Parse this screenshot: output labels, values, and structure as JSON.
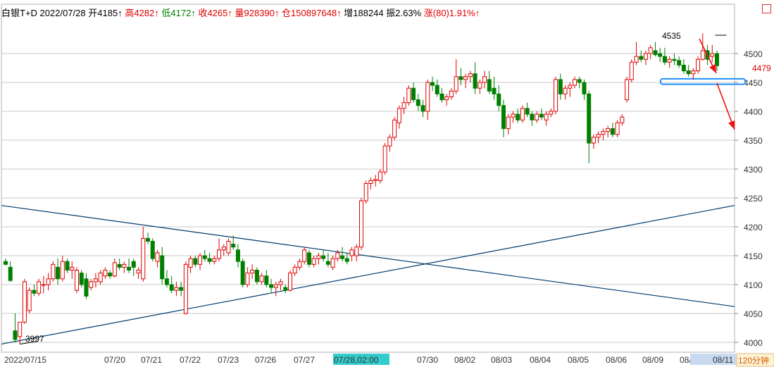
{
  "header": {
    "symbol": "白银T+D",
    "date": "2022/07/28",
    "open_label": "开",
    "open_value": "4185↑",
    "high_label": "高",
    "high_value": "4282↑",
    "low_label": "低",
    "low_value": "4172↑",
    "close_label": "收",
    "close_value": "4265↑",
    "volume_label": "量",
    "volume_value": "928390↑",
    "oi_label": "仓",
    "oi_value": "150897648↑",
    "oi_change": "增188244",
    "amplitude": "振2.63%",
    "change": "涨(80)1.91%↑"
  },
  "colors": {
    "up": "#e00000",
    "down": "#008000",
    "grid": "#c8c8c8",
    "trendline": "#003a6c",
    "highlight_box": "#1e90ff",
    "arrow": "#ee1111",
    "current_price": "#e00000"
  },
  "chart_data": {
    "type": "candlestick",
    "period_label": "120分钟",
    "x_labels": [
      "2022/07/15",
      "07/20",
      "07/21",
      "07/22",
      "07/23",
      "07/26",
      "07/27",
      "07/28,02:00",
      "07/30",
      "08/02",
      "08/03",
      "08/04",
      "08/05",
      "08/06",
      "08/09",
      "08/10",
      "08/11"
    ],
    "highlighted_x_label": "07/28,02:00",
    "y_ticks": [
      4000,
      4050,
      4100,
      4150,
      4200,
      4250,
      4300,
      4350,
      4400,
      4450,
      4500
    ],
    "ylim": [
      3990,
      4545
    ],
    "annotations": [
      {
        "text": "3997",
        "value": 3997,
        "type": "low"
      },
      {
        "text": "4535",
        "value": 4535,
        "type": "high"
      }
    ],
    "current_price": {
      "text": "4479",
      "value": 4479
    },
    "trendlines": [
      {
        "name": "descending",
        "from": [
          0,
          4237
        ],
        "to": [
          162,
          4062
        ]
      },
      {
        "name": "ascending",
        "from": [
          0,
          3997
        ],
        "to": [
          162,
          4237
        ]
      }
    ],
    "support_zone": {
      "low": 4448,
      "high": 4455
    },
    "candles": [
      [
        4140,
        4145,
        4133,
        4135
      ],
      [
        4130,
        4140,
        4105,
        4107
      ],
      [
        4020,
        4050,
        4000,
        4005
      ],
      [
        4010,
        4035,
        3997,
        4035
      ],
      [
        4035,
        4110,
        4032,
        4105
      ],
      [
        4055,
        4095,
        4050,
        4090
      ],
      [
        4090,
        4100,
        4080,
        4085
      ],
      [
        4085,
        4110,
        4080,
        4105
      ],
      [
        4100,
        4115,
        4085,
        4100
      ],
      [
        4100,
        4120,
        4090,
        4110
      ],
      [
        4110,
        4140,
        4105,
        4135
      ],
      [
        4130,
        4145,
        4100,
        4110
      ],
      [
        4110,
        4150,
        4105,
        4140
      ],
      [
        4140,
        4145,
        4120,
        4125
      ],
      [
        4125,
        4140,
        4110,
        4130
      ],
      [
        4090,
        4130,
        4085,
        4125
      ],
      [
        4120,
        4125,
        4095,
        4100
      ],
      [
        4110,
        4120,
        4075,
        4080
      ],
      [
        4095,
        4110,
        4090,
        4105
      ],
      [
        4105,
        4120,
        4095,
        4110
      ],
      [
        4105,
        4125,
        4100,
        4120
      ],
      [
        4115,
        4130,
        4110,
        4125
      ],
      [
        4120,
        4125,
        4110,
        4115
      ],
      [
        4115,
        4145,
        4112,
        4138
      ],
      [
        4135,
        4145,
        4125,
        4130
      ],
      [
        4130,
        4140,
        4120,
        4135
      ],
      [
        4130,
        4145,
        4120,
        4125
      ],
      [
        4140,
        4145,
        4115,
        4130
      ],
      [
        4120,
        4130,
        4110,
        4125
      ],
      [
        4110,
        4200,
        4105,
        4180
      ],
      [
        4180,
        4190,
        4170,
        4175
      ],
      [
        4175,
        4180,
        4140,
        4145
      ],
      [
        4140,
        4160,
        4130,
        4155
      ],
      [
        4150,
        4165,
        4100,
        4110
      ],
      [
        4110,
        4125,
        4095,
        4100
      ],
      [
        4100,
        4115,
        4085,
        4090
      ],
      [
        4090,
        4105,
        4080,
        4095
      ],
      [
        4095,
        4105,
        4080,
        4090
      ],
      [
        4050,
        4140,
        4048,
        4135
      ],
      [
        4130,
        4150,
        4120,
        4145
      ],
      [
        4145,
        4150,
        4130,
        4135
      ],
      [
        4135,
        4155,
        4125,
        4150
      ],
      [
        4150,
        4160,
        4140,
        4145
      ],
      [
        4145,
        4155,
        4135,
        4140
      ],
      [
        4140,
        4150,
        4135,
        4145
      ],
      [
        4145,
        4180,
        4140,
        4160
      ],
      [
        4160,
        4170,
        4150,
        4165
      ],
      [
        4155,
        4180,
        4150,
        4175
      ],
      [
        4170,
        4185,
        4160,
        4165
      ],
      [
        4160,
        4170,
        4130,
        4140
      ],
      [
        4140,
        4145,
        4095,
        4100
      ],
      [
        4100,
        4130,
        4095,
        4120
      ],
      [
        4120,
        4135,
        4110,
        4125
      ],
      [
        4125,
        4130,
        4100,
        4105
      ],
      [
        4105,
        4120,
        4100,
        4115
      ],
      [
        4115,
        4125,
        4095,
        4100
      ],
      [
        4100,
        4110,
        4085,
        4095
      ],
      [
        4095,
        4105,
        4080,
        4100
      ],
      [
        4100,
        4110,
        4090,
        4105
      ],
      [
        4095,
        4100,
        4085,
        4090
      ],
      [
        4090,
        4125,
        4088,
        4120
      ],
      [
        4120,
        4135,
        4115,
        4130
      ],
      [
        4130,
        4145,
        4125,
        4140
      ],
      [
        4140,
        4165,
        4135,
        4160
      ],
      [
        4155,
        4160,
        4130,
        4135
      ],
      [
        4135,
        4150,
        4130,
        4145
      ],
      [
        4145,
        4155,
        4135,
        4150
      ],
      [
        4150,
        4160,
        4140,
        4145
      ],
      [
        4140,
        4155,
        4130,
        4135
      ],
      [
        4130,
        4150,
        4125,
        4145
      ],
      [
        4145,
        4160,
        4140,
        4155
      ],
      [
        4150,
        4165,
        4140,
        4145
      ],
      [
        4145,
        4155,
        4135,
        4140
      ],
      [
        4150,
        4165,
        4140,
        4160
      ],
      [
        4150,
        4170,
        4140,
        4165
      ],
      [
        4165,
        4250,
        4160,
        4245
      ],
      [
        4245,
        4280,
        4240,
        4275
      ],
      [
        4275,
        4285,
        4265,
        4280
      ],
      [
        4280,
        4290,
        4270,
        4282
      ],
      [
        4280,
        4300,
        4275,
        4295
      ],
      [
        4295,
        4345,
        4290,
        4340
      ],
      [
        4340,
        4360,
        4330,
        4355
      ],
      [
        4355,
        4390,
        4350,
        4385
      ],
      [
        4380,
        4410,
        4370,
        4405
      ],
      [
        4405,
        4425,
        4395,
        4415
      ],
      [
        4415,
        4445,
        4410,
        4440
      ],
      [
        4440,
        4450,
        4415,
        4420
      ],
      [
        4420,
        4430,
        4400,
        4410
      ],
      [
        4410,
        4420,
        4390,
        4400
      ],
      [
        4400,
        4455,
        4385,
        4450
      ],
      [
        4450,
        4460,
        4435,
        4445
      ],
      [
        4445,
        4455,
        4425,
        4430
      ],
      [
        4430,
        4440,
        4415,
        4420
      ],
      [
        4420,
        4430,
        4410,
        4425
      ],
      [
        4425,
        4440,
        4420,
        4435
      ],
      [
        4435,
        4490,
        4430,
        4460
      ],
      [
        4460,
        4475,
        4445,
        4455
      ],
      [
        4455,
        4465,
        4440,
        4460
      ],
      [
        4460,
        4470,
        4450,
        4465
      ],
      [
        4465,
        4485,
        4430,
        4440
      ],
      [
        4440,
        4455,
        4430,
        4450
      ],
      [
        4450,
        4470,
        4440,
        4460
      ],
      [
        4455,
        4470,
        4430,
        4435
      ],
      [
        4440,
        4460,
        4420,
        4430
      ],
      [
        4430,
        4445,
        4400,
        4410
      ],
      [
        4410,
        4420,
        4355,
        4370
      ],
      [
        4370,
        4395,
        4360,
        4390
      ],
      [
        4390,
        4400,
        4380,
        4395
      ],
      [
        4395,
        4405,
        4380,
        4385
      ],
      [
        4385,
        4410,
        4380,
        4405
      ],
      [
        4405,
        4415,
        4390,
        4395
      ],
      [
        4395,
        4400,
        4375,
        4385
      ],
      [
        4385,
        4400,
        4380,
        4395
      ],
      [
        4395,
        4405,
        4385,
        4390
      ],
      [
        4385,
        4400,
        4375,
        4395
      ],
      [
        4395,
        4405,
        4390,
        4400
      ],
      [
        4400,
        4460,
        4395,
        4455
      ],
      [
        4455,
        4465,
        4420,
        4430
      ],
      [
        4430,
        4445,
        4420,
        4440
      ],
      [
        4440,
        4450,
        4425,
        4445
      ],
      [
        4445,
        4460,
        4440,
        4455
      ],
      [
        4455,
        4460,
        4440,
        4450
      ],
      [
        4450,
        4455,
        4420,
        4430
      ],
      [
        4430,
        4435,
        4310,
        4345
      ],
      [
        4345,
        4360,
        4335,
        4355
      ],
      [
        4355,
        4365,
        4345,
        4360
      ],
      [
        4360,
        4370,
        4350,
        4365
      ],
      [
        4365,
        4375,
        4355,
        4370
      ],
      [
        4370,
        4380,
        4355,
        4360
      ],
      [
        4360,
        4385,
        4355,
        4380
      ],
      [
        4380,
        4395,
        4375,
        4390
      ],
      [
        4420,
        4460,
        4415,
        4455
      ],
      [
        4455,
        4490,
        4450,
        4485
      ],
      [
        4485,
        4520,
        4480,
        4495
      ],
      [
        4495,
        4505,
        4485,
        4490
      ],
      [
        4490,
        4505,
        4480,
        4500
      ],
      [
        4500,
        4515,
        4490,
        4510
      ],
      [
        4505,
        4520,
        4495,
        4498
      ],
      [
        4500,
        4510,
        4485,
        4495
      ],
      [
        4495,
        4510,
        4480,
        4485
      ],
      [
        4485,
        4495,
        4475,
        4490
      ],
      [
        4490,
        4500,
        4480,
        4488
      ],
      [
        4488,
        4495,
        4475,
        4480
      ],
      [
        4480,
        4490,
        4465,
        4470
      ],
      [
        4470,
        4480,
        4460,
        4465
      ],
      [
        4465,
        4475,
        4455,
        4470
      ],
      [
        4470,
        4495,
        4465,
        4490
      ],
      [
        4490,
        4535,
        4488,
        4505
      ],
      [
        4505,
        4515,
        4480,
        4490
      ],
      [
        4495,
        4515,
        4485,
        4500
      ],
      [
        4500,
        4505,
        4470,
        4479
      ]
    ]
  }
}
